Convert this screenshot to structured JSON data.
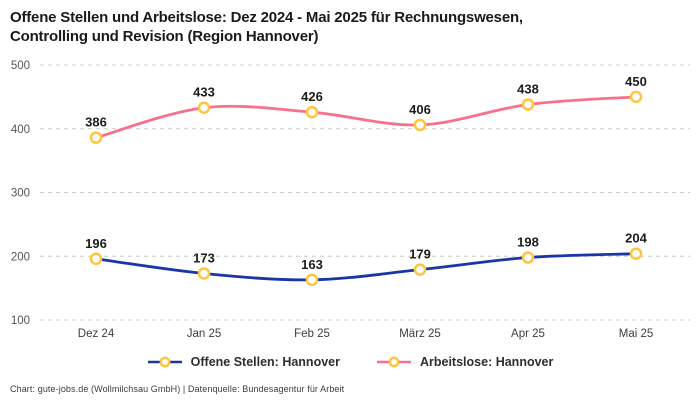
{
  "title": "Offene Stellen und Arbeitslose: Dez 2024 - Mai 2025 für Rechnungswesen, Controlling und Revision (Region Hannover)",
  "footer": "Chart: gute-jobs.de (Wollmilchsau GmbH) | Datenquelle: Bundesagentur für Arbeit",
  "chart_data": {
    "type": "line",
    "title": "Offene Stellen und Arbeitslose: Dez 2024 - Mai 2025 für Rechnungswesen, Controlling und Revision (Region Hannover)",
    "categories": [
      "Dez 24",
      "Jan 25",
      "Feb 25",
      "März 25",
      "Apr 25",
      "Mai 25"
    ],
    "series": [
      {
        "name": "Offene Stellen: Hannover",
        "values": [
          196,
          173,
          163,
          179,
          198,
          204
        ],
        "color": "#1B35A6"
      },
      {
        "name": "Arbeitslose: Hannover",
        "values": [
          386,
          433,
          426,
          406,
          438,
          450
        ],
        "color": "#F8718C"
      }
    ],
    "marker_stroke": "#FFC53D",
    "marker_fill": "#FFFFFF",
    "xlabel": "",
    "ylabel": "",
    "ylim": [
      100,
      500
    ],
    "yticks": [
      100,
      200,
      300,
      400,
      500
    ],
    "grid": "horizontal-dashed",
    "grid_color": "#cccccc",
    "tick_color": "#555555",
    "label_color": "#1c1c1c",
    "legend_position": "bottom"
  }
}
